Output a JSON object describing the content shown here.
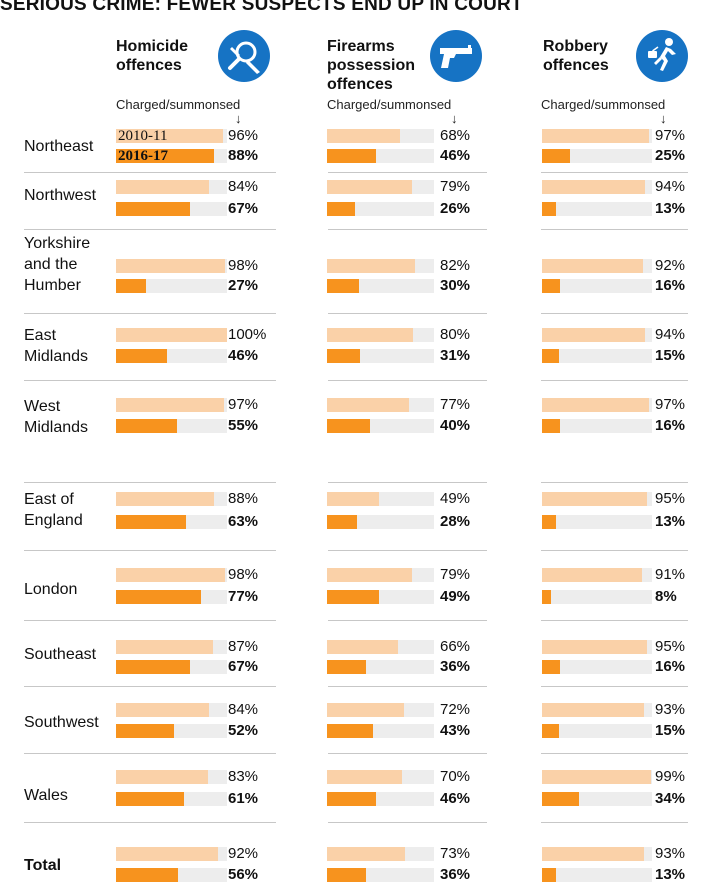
{
  "title": "SERIOUS CRIME: FEWER SUSPECTS END UP IN COURT",
  "colors": {
    "y2010": "#fad1a8",
    "y2016": "#f7931e",
    "icon": "#1673c4",
    "track": "#ededed"
  },
  "columns": [
    {
      "label": "Homicide offences",
      "lines": [
        "Homicide",
        "offences"
      ],
      "sublabel": "Charged/summonsed",
      "icon": "magnifier-knife-icon"
    },
    {
      "label": "Firearms possession offences",
      "lines": [
        "Firearms",
        "possession",
        "offences"
      ],
      "sublabel": "Charged/summonsed",
      "icon": "pistol-icon"
    },
    {
      "label": "Robbery offences",
      "lines": [
        "Robbery",
        "offences"
      ],
      "sublabel": "Charged/summonsed",
      "icon": "running-thief-icon"
    }
  ],
  "legend": {
    "y2010": "2010-11",
    "y2016": "2016-17"
  },
  "chart_data": {
    "type": "bar",
    "title": "SERIOUS CRIME: FEWER SUSPECTS END UP IN COURT",
    "unit": "%",
    "periods": [
      "2010-11",
      "2016-17"
    ],
    "regions": [
      {
        "name": "Northeast",
        "lines": [
          "Northeast"
        ],
        "homicide": [
          96,
          88
        ],
        "firearms": [
          68,
          46
        ],
        "robbery": [
          97,
          25
        ]
      },
      {
        "name": "Northwest",
        "lines": [
          "Northwest"
        ],
        "homicide": [
          84,
          67
        ],
        "firearms": [
          79,
          26
        ],
        "robbery": [
          94,
          13
        ]
      },
      {
        "name": "Yorkshire and the Humber",
        "lines": [
          "Yorkshire",
          "and the",
          "Humber"
        ],
        "homicide": [
          98,
          27
        ],
        "firearms": [
          82,
          30
        ],
        "robbery": [
          92,
          16
        ]
      },
      {
        "name": "East Midlands",
        "lines": [
          "East",
          "Midlands"
        ],
        "homicide": [
          100,
          46
        ],
        "firearms": [
          80,
          31
        ],
        "robbery": [
          94,
          15
        ]
      },
      {
        "name": "West Midlands",
        "lines": [
          "West",
          "Midlands"
        ],
        "homicide": [
          97,
          55
        ],
        "firearms": [
          77,
          40
        ],
        "robbery": [
          97,
          16
        ]
      },
      {
        "name": "East of England",
        "lines": [
          "East of",
          "England"
        ],
        "homicide": [
          88,
          63
        ],
        "firearms": [
          49,
          28
        ],
        "robbery": [
          95,
          13
        ]
      },
      {
        "name": "London",
        "lines": [
          "London"
        ],
        "homicide": [
          98,
          77
        ],
        "firearms": [
          79,
          49
        ],
        "robbery": [
          91,
          8
        ]
      },
      {
        "name": "Southeast",
        "lines": [
          "Southeast"
        ],
        "homicide": [
          87,
          67
        ],
        "firearms": [
          66,
          36
        ],
        "robbery": [
          95,
          16
        ]
      },
      {
        "name": "Southwest",
        "lines": [
          "Southwest"
        ],
        "homicide": [
          84,
          52
        ],
        "firearms": [
          72,
          43
        ],
        "robbery": [
          93,
          15
        ]
      },
      {
        "name": "Wales",
        "lines": [
          "Wales"
        ],
        "homicide": [
          83,
          61
        ],
        "firearms": [
          70,
          46
        ],
        "robbery": [
          99,
          34
        ]
      },
      {
        "name": "Total",
        "lines": [
          "Total"
        ],
        "homicide": [
          92,
          56
        ],
        "firearms": [
          73,
          36
        ],
        "robbery": [
          93,
          13
        ]
      }
    ]
  }
}
